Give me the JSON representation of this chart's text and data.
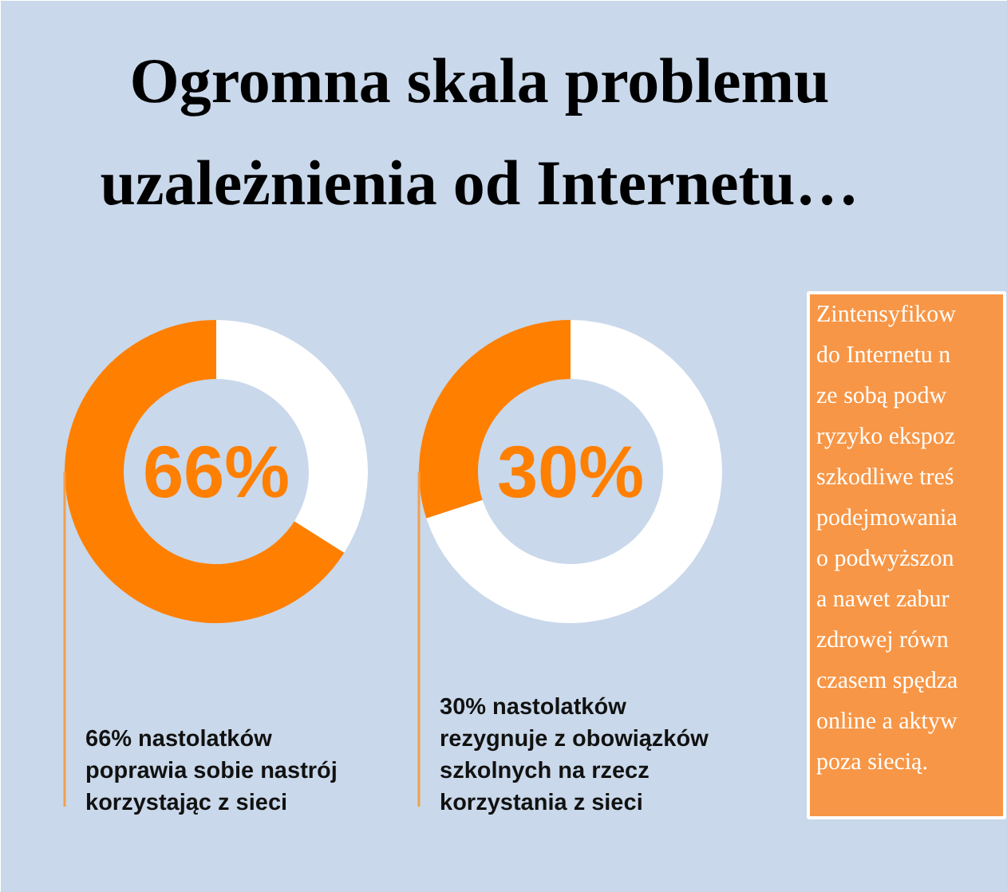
{
  "chart_data": [
    {
      "type": "donut",
      "title": "Ogromna skala problemu\nuzależnienia od Internetu…",
      "categories": [
        null,
        null
      ],
      "values": [
        66,
        34
      ],
      "colors": [
        "#ff7f00",
        "#ffffff"
      ],
      "annotations": [
        "66%",
        "66% nastolatków\npoprawia sobie nastrój\nkorzystając z sieci"
      ]
    },
    {
      "type": "donut",
      "categories": [
        null,
        null
      ],
      "values": [
        30,
        70
      ],
      "colors": [
        "#ff7f00",
        "#ffffff"
      ],
      "annotations": [
        "30%",
        "30% nastolatków\nrezygnuje z obowiązków\nszkolnych na rzecz\nkorzystania z sieci"
      ]
    },
    {
      "type": "other",
      "annotations": [
        "Zintensyfikow\ndo Internetu n\nze sobą podw\nryzyko ekspoz\nszkodliwe treś\npodejmowania\no podwyższon\na nawet zabur\nzdrowej równ\nczasem spędza\nonline a aktyw\npoza siecią."
      ]
    }
  ]
}
